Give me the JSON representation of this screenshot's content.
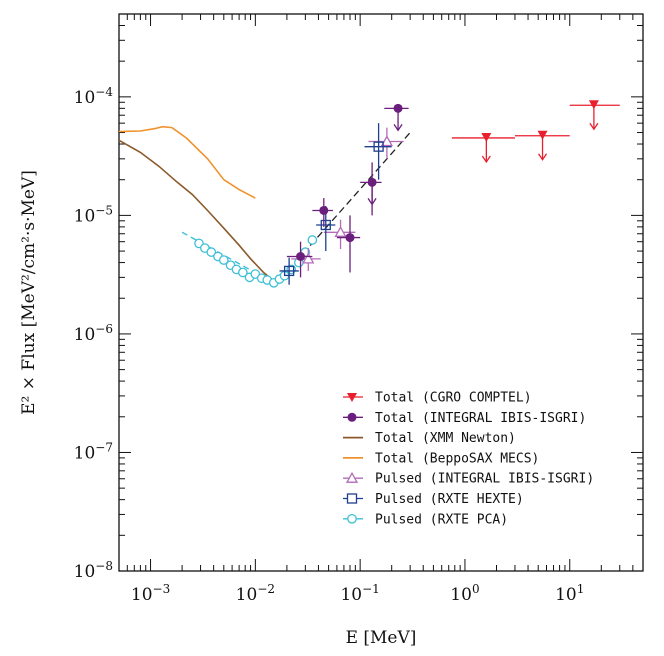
{
  "chart_data": {
    "type": "scatter",
    "xscale": "log",
    "yscale": "log",
    "xlim": [
      0.0005,
      50
    ],
    "ylim": [
      1e-08,
      0.0005
    ],
    "xlabel": "E [MeV]",
    "ylabel": "E² × Flux [MeV²/cm²·s·MeV]",
    "x_ticks": [
      {
        "exp": -3,
        "label": "10",
        "sup": "−3"
      },
      {
        "exp": -2,
        "label": "10",
        "sup": "−2"
      },
      {
        "exp": -1,
        "label": "10",
        "sup": "−1"
      },
      {
        "exp": 0,
        "label": "10",
        "sup": "0"
      },
      {
        "exp": 1,
        "label": "10",
        "sup": "1"
      }
    ],
    "y_ticks": [
      {
        "exp": -8,
        "label": "10",
        "sup": "−8"
      },
      {
        "exp": -7,
        "label": "10",
        "sup": "−7"
      },
      {
        "exp": -6,
        "label": "10",
        "sup": "−6"
      },
      {
        "exp": -5,
        "label": "10",
        "sup": "−5"
      },
      {
        "exp": -4,
        "label": "10",
        "sup": "−4"
      }
    ],
    "legend": [
      {
        "label": "Total (CGRO COMPTEL)",
        "color": "#e8202e",
        "marker": "triangle-down"
      },
      {
        "label": "Total (INTEGRAL IBIS-ISGRI)",
        "color": "#6b1f7c",
        "marker": "circle-filled"
      },
      {
        "label": "Total (XMM Newton)",
        "color": "#8b5a2b",
        "marker": "line"
      },
      {
        "label": "Total (BeppoSAX MECS)",
        "color": "#f0922e",
        "marker": "line"
      },
      {
        "label": "Pulsed (INTEGRAL IBIS-ISGRI)",
        "color": "#b36bb8",
        "marker": "triangle-open"
      },
      {
        "label": "Pulsed (RXTE HEXTE)",
        "color": "#1f3f8f",
        "marker": "square-open"
      },
      {
        "label": "Pulsed (RXTE PCA)",
        "color": "#3ec0d6",
        "marker": "circle-open"
      }
    ],
    "series": [
      {
        "name": "Total (CGRO COMPTEL)",
        "color": "#e8202e",
        "upper_limits": true,
        "points": [
          {
            "x": 1.6,
            "xlo": 0.75,
            "xhi": 3.0,
            "y": 4.5e-05
          },
          {
            "x": 5.5,
            "xlo": 3.0,
            "xhi": 10.0,
            "y": 4.7e-05
          },
          {
            "x": 17,
            "xlo": 10.0,
            "xhi": 30.0,
            "y": 8.5e-05
          }
        ]
      },
      {
        "name": "Total (INTEGRAL IBIS-ISGRI)",
        "color": "#6b1f7c",
        "points": [
          {
            "x": 0.027,
            "xlo": 0.02,
            "xhi": 0.035,
            "y": 4.5e-06,
            "ylo": 3e-06,
            "yhi": 6e-06
          },
          {
            "x": 0.045,
            "xlo": 0.035,
            "xhi": 0.055,
            "y": 1.1e-05,
            "ylo": 8e-06,
            "yhi": 1.4e-05
          },
          {
            "x": 0.08,
            "xlo": 0.06,
            "xhi": 0.1,
            "y": 6.5e-06,
            "ylo": 3.3e-06,
            "yhi": 1e-05
          },
          {
            "x": 0.13,
            "xlo": 0.1,
            "xhi": 0.16,
            "y": 1.9e-05,
            "ylo": 1e-05,
            "yhi": 2.8e-05,
            "ul": true
          },
          {
            "x": 0.23,
            "xlo": 0.17,
            "xhi": 0.29,
            "y": 8e-05,
            "ul": true
          }
        ]
      },
      {
        "name": "Total (XMM Newton)",
        "color": "#8b5a2b",
        "curve": [
          [
            0.0005,
            4.3e-05
          ],
          [
            0.0008,
            3.4e-05
          ],
          [
            0.0012,
            2.6e-05
          ],
          [
            0.0018,
            1.9e-05
          ],
          [
            0.0025,
            1.5e-05
          ],
          [
            0.0035,
            1.1e-05
          ],
          [
            0.005,
            7.8e-06
          ],
          [
            0.007,
            5.6e-06
          ],
          [
            0.009,
            4.3e-06
          ],
          [
            0.012,
            3.3e-06
          ],
          [
            0.015,
            2.8e-06
          ]
        ]
      },
      {
        "name": "Total (BeppoSAX MECS)",
        "color": "#f0922e",
        "curve": [
          [
            0.0005,
            5.1e-05
          ],
          [
            0.0008,
            5.15e-05
          ],
          [
            0.0011,
            5.4e-05
          ],
          [
            0.0013,
            5.6e-05
          ],
          [
            0.0016,
            5.5e-05
          ],
          [
            0.0022,
            4.5e-05
          ],
          [
            0.0035,
            3e-05
          ],
          [
            0.005,
            2e-05
          ],
          [
            0.007,
            1.65e-05
          ],
          [
            0.01,
            1.4e-05
          ]
        ]
      },
      {
        "name": "Pulsed (INTEGRAL IBIS-ISGRI)",
        "color": "#b36bb8",
        "points": [
          {
            "x": 0.032,
            "xlo": 0.022,
            "xhi": 0.042,
            "y": 4.3e-06,
            "ylo": 3.4e-06,
            "yhi": 5.3e-06
          },
          {
            "x": 0.065,
            "xlo": 0.045,
            "xhi": 0.09,
            "y": 7.2e-06,
            "ylo": 5.2e-06,
            "yhi": 9.2e-06
          },
          {
            "x": 0.18,
            "xlo": 0.12,
            "xhi": 0.26,
            "y": 4.2e-05,
            "ylo": 3e-05,
            "yhi": 5.5e-05
          }
        ]
      },
      {
        "name": "Pulsed (RXTE HEXTE)",
        "color": "#1f3f8f",
        "points": [
          {
            "x": 0.021,
            "xlo": 0.017,
            "xhi": 0.026,
            "y": 3.4e-06,
            "ylo": 2.6e-06,
            "yhi": 4.4e-06
          },
          {
            "x": 0.047,
            "xlo": 0.038,
            "xhi": 0.058,
            "y": 8.3e-06,
            "ylo": 5e-06,
            "yhi": 1.2e-05
          },
          {
            "x": 0.15,
            "xlo": 0.11,
            "xhi": 0.2,
            "y": 3.8e-05,
            "ylo": 2e-05,
            "yhi": 6e-05
          }
        ]
      },
      {
        "name": "Pulsed (RXTE PCA)",
        "color": "#3ec0d6",
        "points": [
          {
            "x": 0.0029,
            "y": 5.8e-06
          },
          {
            "x": 0.0033,
            "y": 5.3e-06
          },
          {
            "x": 0.0038,
            "y": 4.9e-06
          },
          {
            "x": 0.0044,
            "y": 4.5e-06
          },
          {
            "x": 0.005,
            "y": 4.2e-06
          },
          {
            "x": 0.0058,
            "y": 3.8e-06
          },
          {
            "x": 0.0066,
            "y": 3.5e-06
          },
          {
            "x": 0.0076,
            "y": 3.3e-06
          },
          {
            "x": 0.0088,
            "y": 3e-06
          },
          {
            "x": 0.01,
            "y": 3.2e-06
          },
          {
            "x": 0.0115,
            "y": 2.95e-06
          },
          {
            "x": 0.013,
            "y": 2.85e-06
          },
          {
            "x": 0.015,
            "y": 2.7e-06
          },
          {
            "x": 0.017,
            "y": 2.9e-06
          },
          {
            "x": 0.019,
            "y": 3.1e-06
          },
          {
            "x": 0.022,
            "y": 3.5e-06
          },
          {
            "x": 0.026,
            "y": 4e-06
          },
          {
            "x": 0.03,
            "y": 4.9e-06
          },
          {
            "x": 0.035,
            "y": 6.2e-06
          }
        ],
        "fit": [
          [
            0.002,
            7.2e-06
          ],
          [
            0.015,
            2.7e-06
          ]
        ]
      }
    ],
    "model_line": {
      "name": "dashed model",
      "color": "#222222",
      "points": [
        [
          0.015,
          2.5e-06
        ],
        [
          0.3,
          5e-05
        ]
      ]
    }
  }
}
